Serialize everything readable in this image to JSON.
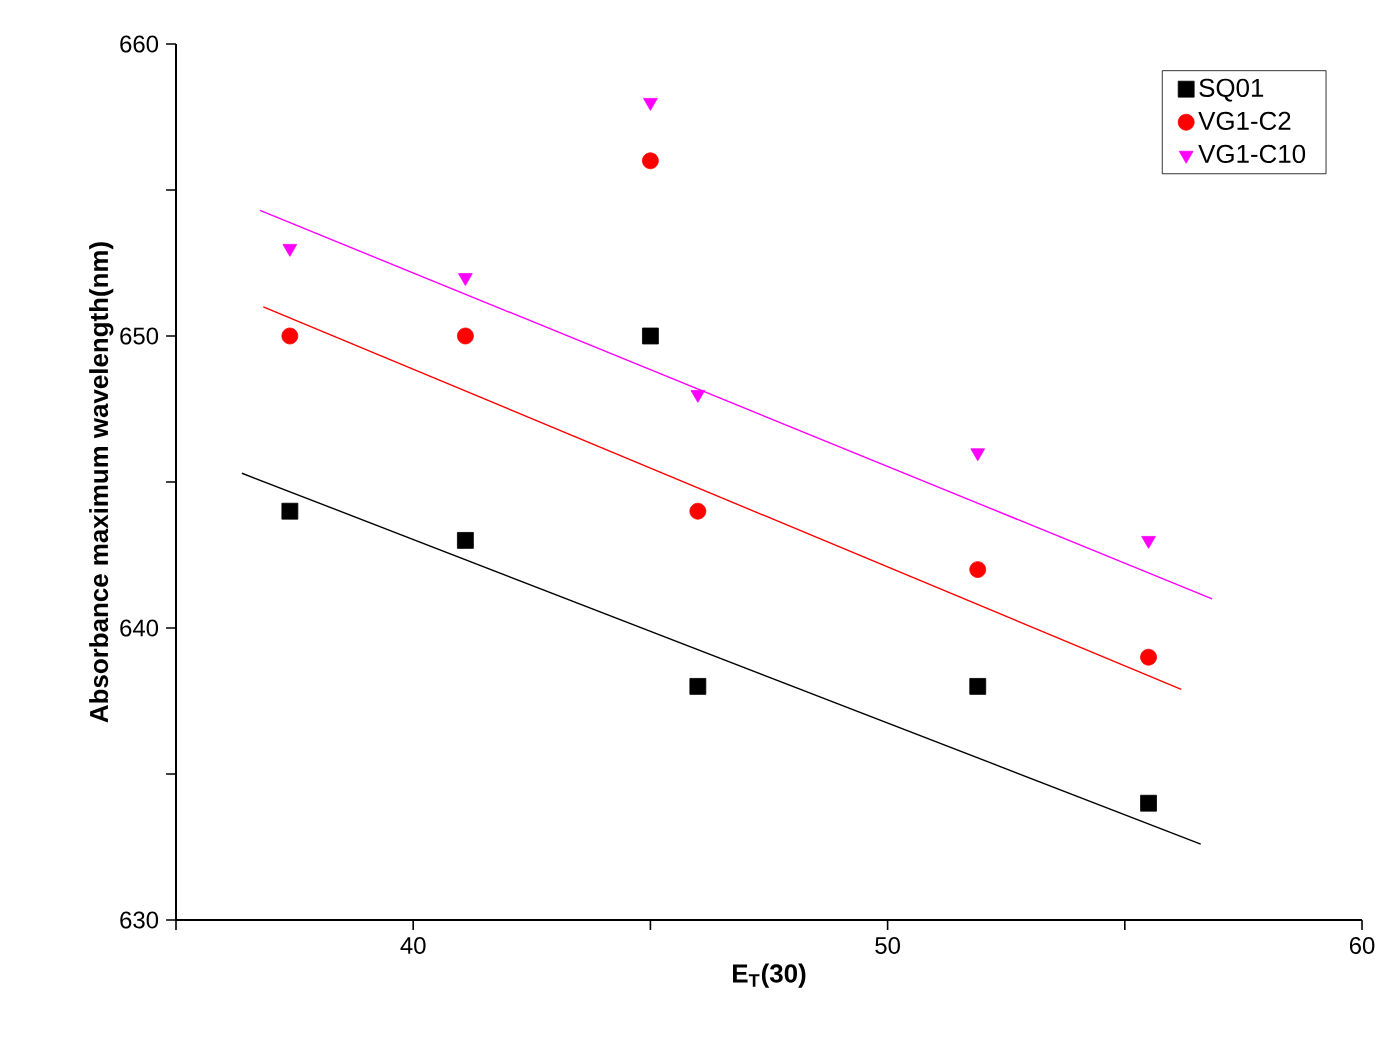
{
  "chart_data": {
    "type": "scatter",
    "xlabel": "E$_{T}$(30)",
    "ylabel": "Absorbance maximum wavelength(nm)",
    "xlim": [
      35,
      60
    ],
    "ylim": [
      630,
      660
    ],
    "xticks": [
      {
        "value": 35,
        "label": null
      },
      40,
      {
        "value": 45,
        "label": null
      },
      50,
      {
        "value": 55,
        "label": null
      },
      60
    ],
    "yticks": [
      630,
      {
        "value": 635,
        "label": null
      },
      640,
      {
        "value": 645,
        "label": null
      },
      650,
      {
        "value": 655,
        "label": null
      },
      660
    ],
    "grid": false,
    "legend": "top right",
    "series": [
      {
        "name": "SQ01",
        "color": "#000000",
        "marker": "square",
        "x": [
          37.4,
          41.1,
          45.0,
          46.0,
          51.9,
          55.5
        ],
        "values": [
          644,
          643,
          650,
          638,
          638,
          634
        ]
      },
      {
        "name": "VG1-C2",
        "color": "#ff0000",
        "marker": "circle",
        "x": [
          37.4,
          41.1,
          45.0,
          46.0,
          51.9,
          55.5
        ],
        "values": [
          650,
          650,
          656,
          644,
          642,
          639
        ]
      },
      {
        "name": "VG1-C10",
        "color": "#ff00ff",
        "marker": "triangle",
        "x": [
          37.4,
          41.1,
          45.0,
          46.0,
          51.9,
          55.5
        ],
        "values": [
          653,
          652,
          658,
          648,
          646,
          643
        ]
      },
      {
        "type": "line",
        "color": "#000000",
        "marker": "none",
        "x": [
          36.39,
          56.6
        ],
        "values": [
          645.3,
          632.6
        ]
      },
      {
        "type": "line",
        "color": "#ff0000",
        "marker": "none",
        "x": [
          36.84,
          56.19
        ],
        "values": [
          651.0,
          637.9
        ]
      },
      {
        "type": "line",
        "color": "#ff00ff",
        "marker": "none",
        "x": [
          36.77,
          56.84
        ],
        "values": [
          654.3,
          641.0
        ]
      }
    ]
  }
}
